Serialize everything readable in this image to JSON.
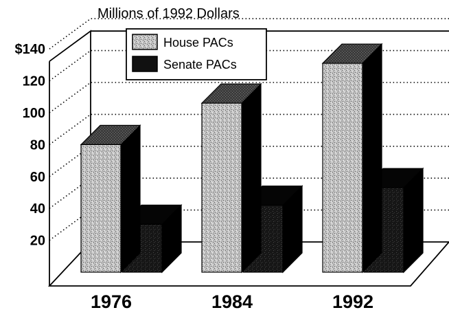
{
  "chart_data": {
    "type": "bar",
    "title": "Millions of 1992 Dollars",
    "categories": [
      "1976",
      "1984",
      "1992"
    ],
    "series": [
      {
        "name": "House PACs",
        "values": [
          80,
          106,
          131
        ]
      },
      {
        "name": "Senate PACs",
        "values": [
          30,
          42,
          53
        ]
      }
    ],
    "yticks": [
      "20",
      "40",
      "60",
      "80",
      "100",
      "120",
      "$140"
    ],
    "ylim": [
      0,
      140
    ],
    "grid": true,
    "legend": "top-left",
    "colors": {
      "house_light": "#c4c4c4",
      "house_dark": "#5a5a5a",
      "senate": "#161616",
      "senate_side": "#000000"
    }
  }
}
